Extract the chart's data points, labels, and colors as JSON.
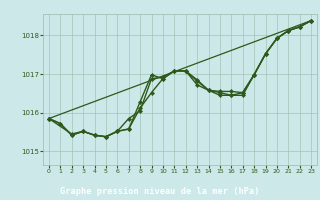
{
  "title": "Graphe pression niveau de la mer (hPa)",
  "background_color": "#cce8e8",
  "plot_bg_color": "#cce8e8",
  "label_bg_color": "#2d6e2d",
  "label_text_color": "#ffffff",
  "line_color": "#2d5a1b",
  "grid_color": "#99bbaa",
  "tick_color": "#2d5a1b",
  "xlim": [
    -0.5,
    23.5
  ],
  "ylim": [
    1014.65,
    1018.55
  ],
  "yticks": [
    1015,
    1016,
    1017,
    1018
  ],
  "xticks": [
    0,
    1,
    2,
    3,
    4,
    5,
    6,
    7,
    8,
    9,
    10,
    11,
    12,
    13,
    14,
    15,
    16,
    17,
    18,
    19,
    20,
    21,
    22,
    23
  ],
  "series": [
    {
      "x": [
        0,
        1,
        2,
        3,
        4,
        5,
        6,
        7,
        8,
        9,
        10,
        11,
        12,
        13,
        14,
        15,
        16,
        17,
        18,
        19,
        20,
        21,
        22,
        23
      ],
      "y": [
        1015.85,
        1015.72,
        1015.42,
        1015.52,
        1015.42,
        1015.38,
        1015.52,
        1015.85,
        1016.05,
        1016.88,
        1016.92,
        1017.08,
        1017.08,
        1016.82,
        1016.58,
        1016.45,
        1016.45,
        1016.52,
        1016.98,
        1017.52,
        1017.92,
        1018.12,
        1018.22,
        1018.38
      ],
      "marker": "D",
      "markersize": 2.2,
      "linewidth": 1.0
    },
    {
      "x": [
        0,
        1,
        2,
        3,
        4,
        5,
        6,
        7,
        8,
        9,
        10,
        11,
        12,
        13,
        14,
        15,
        16,
        17,
        18,
        19,
        20,
        21,
        22,
        23
      ],
      "y": [
        1015.85,
        1015.72,
        1015.42,
        1015.52,
        1015.42,
        1015.38,
        1015.52,
        1015.58,
        1016.12,
        1016.52,
        1016.88,
        1017.08,
        1017.08,
        1016.85,
        1016.58,
        1016.55,
        1016.55,
        1016.52,
        1016.98,
        1017.52,
        1017.92,
        1018.12,
        1018.22,
        1018.38
      ],
      "marker": "D",
      "markersize": 2.2,
      "linewidth": 1.0
    },
    {
      "x": [
        0,
        2,
        3,
        4,
        5,
        6,
        7,
        8,
        9,
        10,
        11,
        12,
        13,
        14,
        15,
        16,
        17,
        18,
        19,
        20,
        21,
        22,
        23
      ],
      "y": [
        1015.85,
        1015.45,
        1015.52,
        1015.42,
        1015.38,
        1015.52,
        1015.58,
        1016.28,
        1016.98,
        1016.88,
        1017.08,
        1017.08,
        1016.72,
        1016.58,
        1016.52,
        1016.45,
        1016.45,
        1016.98,
        1017.52,
        1017.92,
        1018.12,
        1018.22,
        1018.38
      ],
      "marker": "D",
      "markersize": 2.2,
      "linewidth": 1.0
    },
    {
      "x": [
        0,
        23
      ],
      "y": [
        1015.85,
        1018.38
      ],
      "marker": null,
      "markersize": 0,
      "linewidth": 0.9
    }
  ]
}
